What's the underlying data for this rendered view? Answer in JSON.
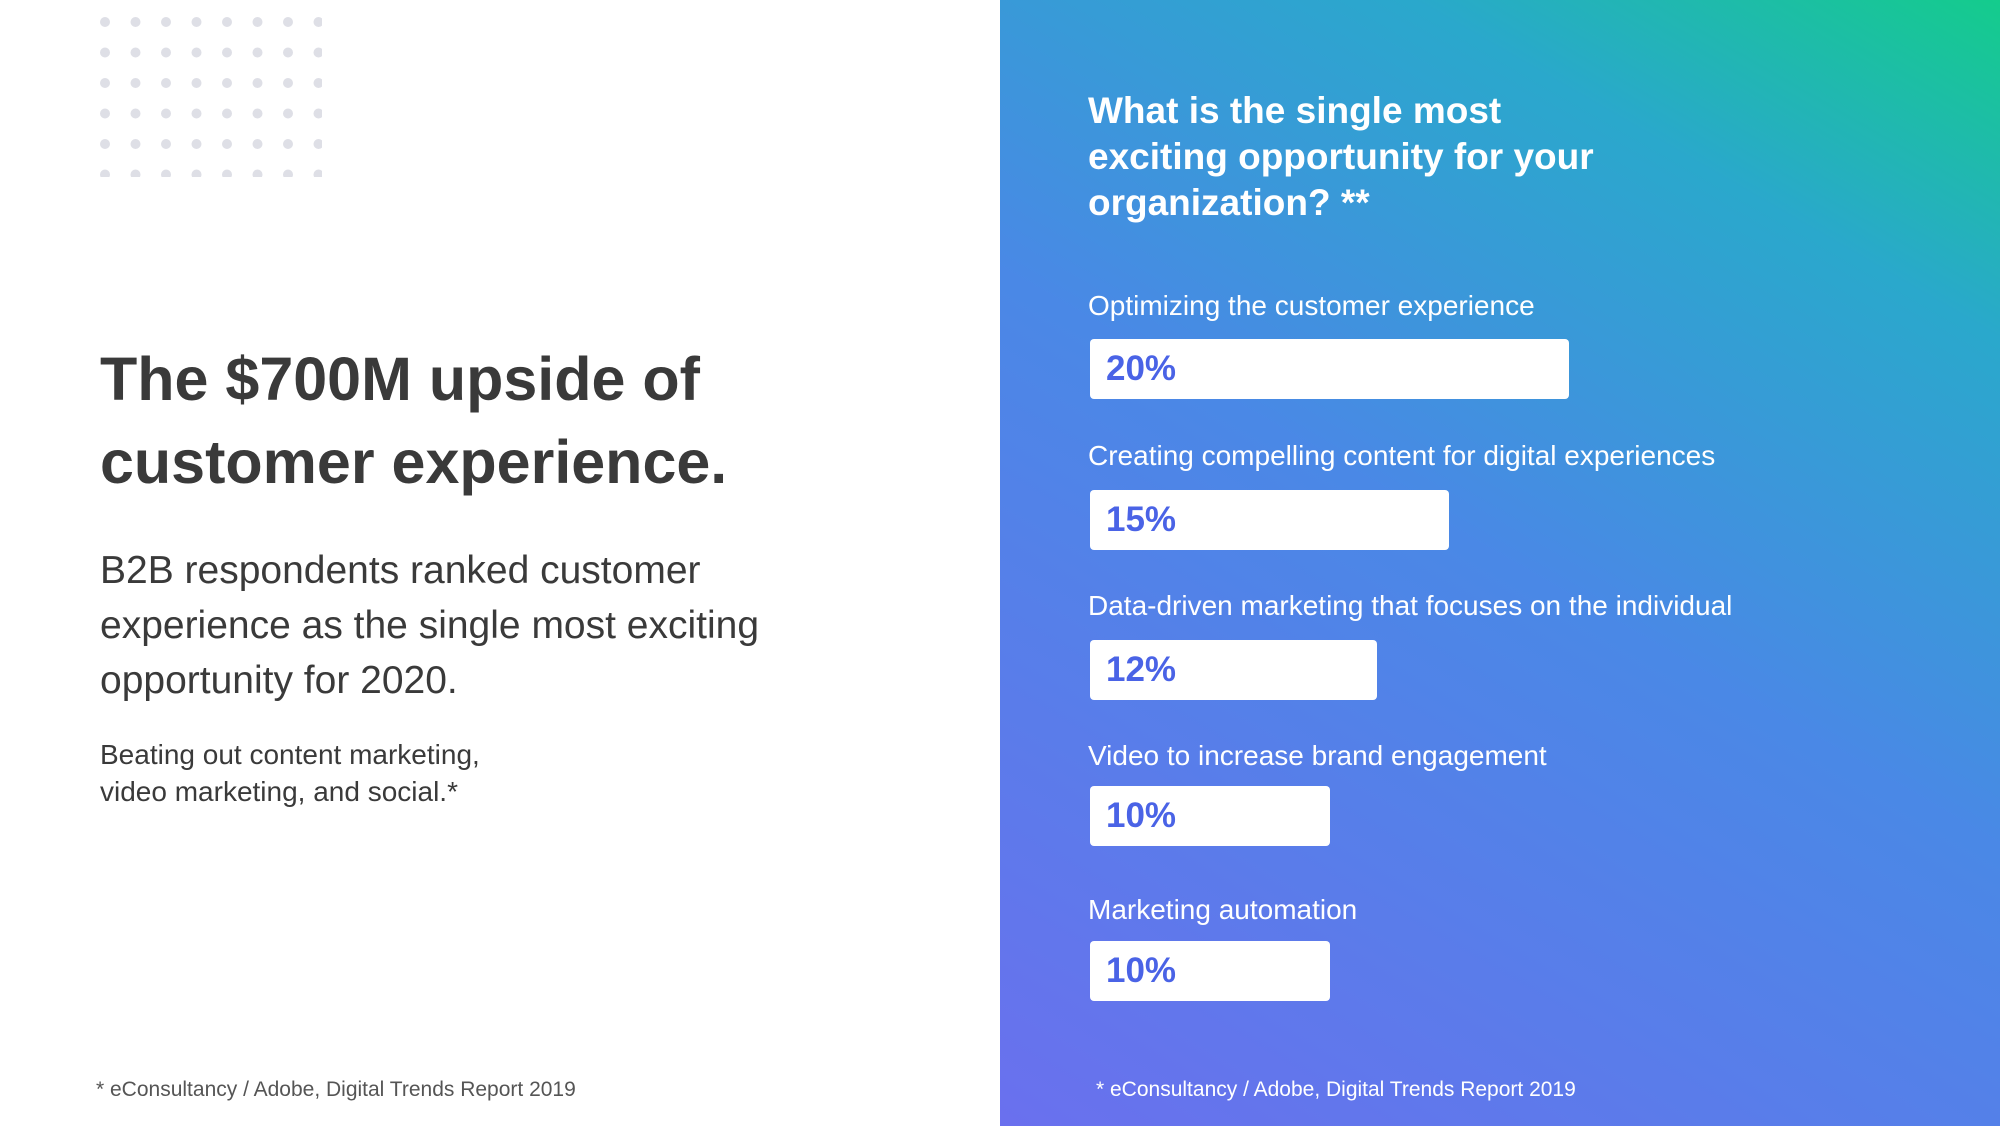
{
  "left": {
    "headline": "The $700M upside of customer experience.",
    "subtext": "B2B respondents ranked customer experience as the single most exciting opportunity for 2020.",
    "smalltext_line1": "Beating out content marketing,",
    "smalltext_line2": "video marketing, and social.*",
    "footnote": "* eConsultancy / Adobe, Digital Trends Report 2019"
  },
  "right": {
    "footnote": "* eConsultancy / Adobe, Digital Trends Report 2019"
  },
  "colors": {
    "bar_fill": "#ffffff",
    "value_text": "#4a63e6",
    "headline_text": "#3a3a3a",
    "dot": "#dedfe6"
  },
  "chart_data": {
    "type": "bar",
    "orientation": "horizontal",
    "title": "What is the single most exciting opportunity for your organization? **",
    "categories": [
      "Optimizing the customer experience",
      "Creating compelling content for digital experiences",
      "Data-driven marketing that focuses on the individual",
      "Video to increase brand engagement",
      "Marketing automation"
    ],
    "values": [
      20,
      15,
      12,
      10,
      10
    ],
    "value_labels": [
      "20%",
      "15%",
      "12%",
      "10%",
      "10%"
    ],
    "unit": "%",
    "grid": false
  }
}
